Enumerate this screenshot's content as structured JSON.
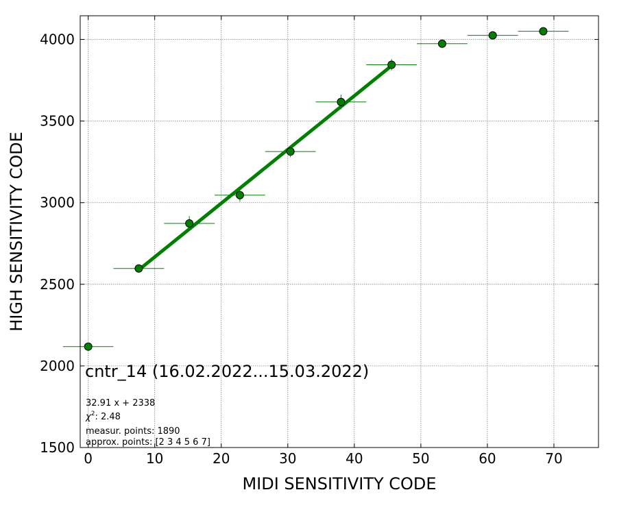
{
  "chart_data": {
    "type": "scatter",
    "xlabel": "MIDI SENSITIVITY CODE",
    "ylabel": "HIGH SENSITIVITY CODE",
    "xlim": [
      -1.2,
      76.7
    ],
    "ylim": [
      1500,
      4145
    ],
    "xticks": [
      0,
      10,
      20,
      30,
      40,
      50,
      60,
      70
    ],
    "yticks": [
      1500,
      2000,
      2500,
      3000,
      3500,
      4000
    ],
    "grid": true,
    "colors": {
      "marker": "#008000",
      "fit_line": "#008000",
      "marker_edge": "#000000",
      "grid": "#808080"
    },
    "points": [
      {
        "x": 0.0,
        "y": 2118,
        "xerr": 3.8,
        "yerr": 0
      },
      {
        "x": 7.6,
        "y": 2597,
        "xerr": 3.8,
        "yerr": 18
      },
      {
        "x": 15.2,
        "y": 2873,
        "xerr": 3.8,
        "yerr": 45
      },
      {
        "x": 22.8,
        "y": 3046,
        "xerr": 3.8,
        "yerr": 40
      },
      {
        "x": 30.4,
        "y": 3313,
        "xerr": 3.8,
        "yerr": 35
      },
      {
        "x": 38.0,
        "y": 3617,
        "xerr": 3.8,
        "yerr": 45
      },
      {
        "x": 45.6,
        "y": 3845,
        "xerr": 3.8,
        "yerr": 35
      },
      {
        "x": 53.2,
        "y": 3974,
        "xerr": 3.8,
        "yerr": 0
      },
      {
        "x": 60.8,
        "y": 4025,
        "xerr": 3.8,
        "yerr": 0
      },
      {
        "x": 68.4,
        "y": 4050,
        "xerr": 3.8,
        "yerr": 0
      }
    ],
    "fit": {
      "slope": 32.91,
      "intercept": 2338,
      "x_range": [
        7.6,
        45.6
      ]
    },
    "annotations": {
      "title": "cntr_14 (16.02.2022...15.03.2022)",
      "formula": "32.91 x + 2338",
      "chi2_prefix": "χ",
      "chi2_sup": "2",
      "chi2_value": ": 2.48",
      "measur_points": "measur. points: 1890",
      "approx_points": "approx. points: [2 3 4 5 6 7]"
    }
  }
}
